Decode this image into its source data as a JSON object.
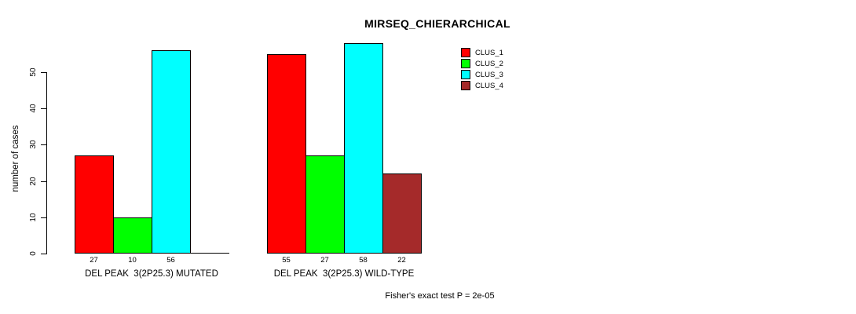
{
  "chart_data": {
    "type": "bar",
    "title": "MIRSEQ_CHIERARCHICAL",
    "ylabel": "number of cases",
    "xlabel": "",
    "annotation": "Fisher's exact test P = 2e-05",
    "yticks": [
      0,
      10,
      20,
      30,
      40,
      50
    ],
    "ylim": [
      0,
      58
    ],
    "grid": false,
    "legend_position": "top-right",
    "bar_value_labels_shown": true,
    "categories": [
      "DEL PEAK  3(2P25.3) MUTATED",
      "DEL PEAK  3(2P25.3) WILD-TYPE"
    ],
    "series": [
      {
        "name": "CLUS_1",
        "color": "#FF0000",
        "values": [
          27,
          55
        ]
      },
      {
        "name": "CLUS_2",
        "color": "#00FF00",
        "values": [
          10,
          27
        ]
      },
      {
        "name": "CLUS_3",
        "color": "#00FFFF",
        "values": [
          56,
          58
        ]
      },
      {
        "name": "CLUS_4",
        "color": "#A52A2A",
        "values": [
          0,
          22
        ]
      }
    ]
  }
}
